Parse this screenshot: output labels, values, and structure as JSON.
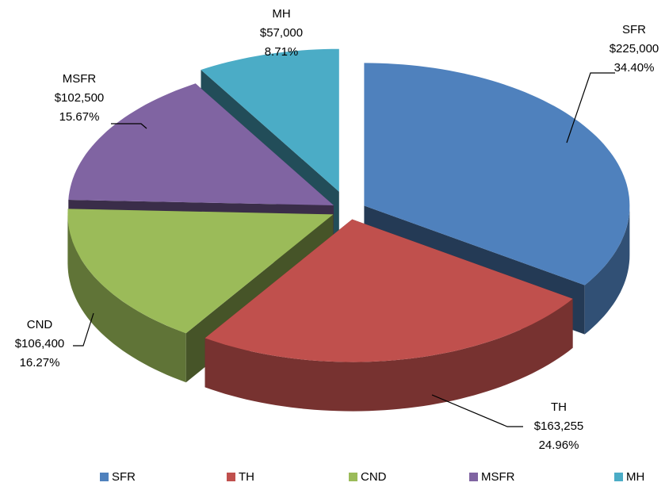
{
  "chart_data": {
    "type": "pie",
    "categories": [
      "SFR",
      "TH",
      "CND",
      "MSFR",
      "MH"
    ],
    "values": [
      225000,
      163255,
      106400,
      102500,
      57000
    ],
    "value_labels": [
      "$225,000",
      "$163,255",
      "$106,400",
      "$102,500",
      "$57,000"
    ],
    "percentages": [
      34.4,
      24.96,
      16.27,
      15.67,
      8.71
    ],
    "percentage_labels": [
      "34.40%",
      "24.96%",
      "16.27%",
      "15.67%",
      "8.71%"
    ],
    "colors": [
      "#4f81bd",
      "#c0504d",
      "#9bbb59",
      "#8064a2",
      "#4bacc6"
    ],
    "legend": "bottom"
  }
}
